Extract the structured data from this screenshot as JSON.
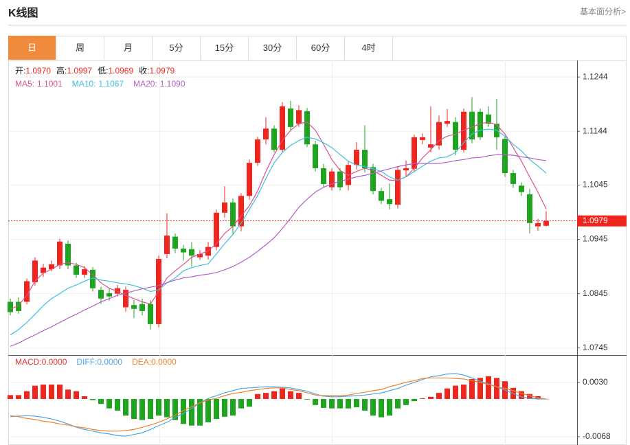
{
  "header": {
    "title": "K线图",
    "link": "基本面分析>"
  },
  "tabs": [
    "日",
    "周",
    "月",
    "5分",
    "15分",
    "30分",
    "60分",
    "4时"
  ],
  "active_tab": 0,
  "chart_data": [
    {
      "type": "candlestick",
      "up_color": "#f0261e",
      "down_color": "#1ea51e",
      "ylim": [
        1.0732,
        1.1272
      ],
      "yticks": [
        1.1244,
        1.1144,
        1.1045,
        1.0945,
        1.0845,
        1.0745
      ],
      "grid": true,
      "current_price": 1.0979,
      "current_price_color": "#f0261e",
      "info": [
        {
          "label": "开:",
          "value": "1.0970"
        },
        {
          "label": "高:",
          "value": "1.0997"
        },
        {
          "label": "低:",
          "value": "1.0969"
        },
        {
          "label": "收:",
          "value": "1.0979"
        }
      ],
      "open": [
        1.083,
        1.083,
        1.083,
        1.0866,
        1.0883,
        1.089,
        1.0897,
        1.0937,
        1.0897,
        1.088,
        1.0889,
        1.0852,
        1.0846,
        1.0845,
        1.082,
        1.0824,
        1.0826,
        1.0826,
        1.0789,
        1.0918,
        1.095,
        1.0928,
        1.0927,
        1.0912,
        1.0915,
        1.0931,
        1.0994,
        1.1013,
        1.0969,
        1.1025,
        1.1086,
        1.1129,
        1.1149,
        1.111,
        1.1186,
        1.1158,
        1.1181,
        1.112,
        1.1076,
        1.1041,
        1.107,
        1.1045,
        1.1082,
        1.111,
        1.1078,
        1.1034,
        1.1019,
        1.1009,
        1.1072,
        1.1075,
        1.1128,
        1.1114,
        1.1118,
        1.1158,
        1.1161,
        1.111,
        1.118,
        1.118,
        1.1175,
        1.1158,
        1.113,
        1.1067,
        1.1044,
        1.1028,
        1.0969,
        1.097
      ],
      "high": [
        1.0836,
        1.0838,
        1.0873,
        1.0912,
        1.09,
        1.0906,
        1.0946,
        1.0943,
        1.0902,
        1.0896,
        1.0894,
        1.0858,
        1.0855,
        1.0861,
        1.0858,
        1.0833,
        1.0836,
        1.0833,
        1.0915,
        1.0993,
        1.0956,
        1.0935,
        1.094,
        1.0925,
        1.094,
        1.1,
        1.1043,
        1.102,
        1.103,
        1.1092,
        1.1134,
        1.117,
        1.1155,
        1.1198,
        1.12,
        1.1192,
        1.1187,
        1.1127,
        1.1084,
        1.1076,
        1.1076,
        1.1088,
        1.1124,
        1.1155,
        1.1084,
        1.104,
        1.1048,
        1.108,
        1.109,
        1.1138,
        1.114,
        1.119,
        1.1173,
        1.1185,
        1.117,
        1.1186,
        1.1207,
        1.1186,
        1.119,
        1.1204,
        1.1136,
        1.1073,
        1.105,
        1.1038,
        1.0983,
        1.0997
      ],
      "low": [
        1.0805,
        1.0808,
        1.0825,
        1.086,
        1.0876,
        1.0886,
        1.089,
        1.089,
        1.0874,
        1.0874,
        1.0849,
        1.0826,
        1.0832,
        1.084,
        1.0812,
        1.08,
        1.0805,
        1.0779,
        1.0783,
        1.091,
        1.092,
        1.0906,
        1.0895,
        1.0907,
        1.0908,
        1.0925,
        1.0985,
        1.0953,
        1.096,
        1.1018,
        1.108,
        1.112,
        1.1105,
        1.1105,
        1.1146,
        1.1152,
        1.1115,
        1.107,
        1.1042,
        1.1035,
        1.1035,
        1.1035,
        1.1074,
        1.1068,
        1.1028,
        1.101,
        1.1,
        1.1002,
        1.106,
        1.107,
        1.112,
        1.1105,
        1.111,
        1.1152,
        1.11,
        1.1105,
        1.1122,
        1.1128,
        1.1152,
        1.111,
        1.106,
        1.104,
        1.1025,
        1.0956,
        1.0961,
        1.0969
      ],
      "close": [
        1.0811,
        1.0813,
        1.0868,
        1.0906,
        1.0893,
        1.0899,
        1.0941,
        1.0897,
        1.088,
        1.089,
        1.0855,
        1.0836,
        1.084,
        1.0855,
        1.0852,
        1.0817,
        1.0813,
        1.0789,
        1.0909,
        1.0952,
        1.0928,
        1.0921,
        1.0915,
        1.0918,
        1.0931,
        1.0994,
        1.1013,
        1.0969,
        1.1025,
        1.1086,
        1.1129,
        1.1149,
        1.111,
        1.119,
        1.1152,
        1.1183,
        1.112,
        1.1076,
        1.1047,
        1.107,
        1.1041,
        1.1082,
        1.111,
        1.1076,
        1.1034,
        1.1016,
        1.101,
        1.1073,
        1.1076,
        1.1133,
        1.1133,
        1.112,
        1.1161,
        1.1163,
        1.111,
        1.118,
        1.1129,
        1.1133,
        1.1158,
        1.1133,
        1.1067,
        1.1047,
        1.1032,
        1.0975,
        1.0975,
        1.0979
      ],
      "series": [
        {
          "name": "MA5:",
          "value_label": "1.1001",
          "color": "#e0508c",
          "values": [
            1.0817,
            1.0823,
            1.0842,
            1.0868,
            1.0883,
            1.089,
            1.0899,
            1.0902,
            1.0899,
            1.0893,
            1.088,
            1.0865,
            1.0855,
            1.0849,
            1.0842,
            1.0836,
            1.083,
            1.0826,
            1.0849,
            1.0874,
            1.0887,
            1.0899,
            1.0912,
            1.0918,
            1.0924,
            1.0937,
            1.0956,
            1.0969,
            1.0988,
            1.1007,
            1.1034,
            1.107,
            1.1101,
            1.1127,
            1.1146,
            1.1158,
            1.1161,
            1.1146,
            1.112,
            1.1092,
            1.1072,
            1.1063,
            1.107,
            1.1076,
            1.1072,
            1.1063,
            1.1054,
            1.1054,
            1.106,
            1.1076,
            1.1095,
            1.111,
            1.1127,
            1.1135,
            1.1139,
            1.1146,
            1.1152,
            1.1158,
            1.1161,
            1.1156,
            1.1139,
            1.1114,
            1.1089,
            1.106,
            1.1032,
            1.1001
          ]
        },
        {
          "name": "MA10:",
          "value_label": "1.1067",
          "color": "#3ec0de",
          "values": [
            1.0769,
            1.0779,
            1.0792,
            1.0807,
            1.0823,
            1.0836,
            1.0845,
            1.0855,
            1.0861,
            1.0868,
            1.0874,
            1.087,
            1.0868,
            1.0865,
            1.0863,
            1.086,
            1.0855,
            1.0849,
            1.0852,
            1.0865,
            1.0874,
            1.0887,
            1.0893,
            1.0897,
            1.09,
            1.0918,
            1.0937,
            1.0954,
            1.0975,
            1.1,
            1.1026,
            1.1057,
            1.1086,
            1.1105,
            1.1118,
            1.1127,
            1.1133,
            1.113,
            1.1123,
            1.1114,
            1.1101,
            1.1089,
            1.1082,
            1.1079,
            1.1075,
            1.107,
            1.106,
            1.1054,
            1.106,
            1.107,
            1.108,
            1.1089,
            1.1095,
            1.1097,
            1.1105,
            1.1123,
            1.1139,
            1.1146,
            1.1148,
            1.1146,
            1.1135,
            1.112,
            1.1108,
            1.1092,
            1.108,
            1.1067
          ]
        },
        {
          "name": "MA20:",
          "value_label": "1.1090",
          "color": "#b25ec8",
          "values": [
            1.0748,
            1.0754,
            1.0762,
            1.0769,
            1.0777,
            1.0784,
            1.0792,
            1.08,
            1.0807,
            1.0815,
            1.0822,
            1.083,
            1.0836,
            1.0842,
            1.0846,
            1.085,
            1.0854,
            1.0857,
            1.086,
            1.0865,
            1.087,
            1.0874,
            1.0876,
            1.0879,
            1.0881,
            1.0884,
            1.0889,
            1.0895,
            1.0903,
            1.0912,
            1.0923,
            1.0935,
            1.0948,
            1.0965,
            1.0984,
            1.1004,
            1.1019,
            1.1032,
            1.1041,
            1.1047,
            1.1052,
            1.1056,
            1.106,
            1.1063,
            1.1067,
            1.1071,
            1.1075,
            1.1079,
            1.1082,
            1.1085,
            1.1085,
            1.1085,
            1.1085,
            1.1087,
            1.109,
            1.1092,
            1.1095,
            1.1096,
            1.1099,
            1.1101,
            1.1101,
            1.11,
            1.1097,
            1.1095,
            1.1092,
            1.109
          ]
        }
      ]
    },
    {
      "type": "macd",
      "up_color": "#f0261e",
      "down_color": "#1ea51e",
      "ylim": [
        -0.0083,
        0.0078
      ],
      "yticks": [
        {
          "value": 0.003,
          "label": "0.0030"
        },
        {
          "value": -0.0068,
          "label": "-0.0068"
        }
      ],
      "grid": true,
      "series": [
        {
          "name": "MACD:",
          "value_label": "0.0000",
          "color": "#e8302a",
          "kind": "bar",
          "values": [
            0.0007,
            0.0007,
            0.0014,
            0.0024,
            0.0026,
            0.0026,
            0.0026,
            0.0017,
            0.0014,
            0.0005,
            -0.0002,
            -0.0009,
            -0.0017,
            -0.0021,
            -0.003,
            -0.0036,
            -0.0038,
            -0.0036,
            -0.003,
            -0.0033,
            -0.0038,
            -0.0045,
            -0.0048,
            -0.0048,
            -0.0042,
            -0.0036,
            -0.0032,
            -0.003,
            -0.0017,
            -0.0014,
            0.0009,
            0.0011,
            0.0014,
            0.0019,
            0.0014,
            0.0011,
            -0.0001,
            -0.0011,
            -0.0016,
            -0.0017,
            -0.0017,
            -0.0017,
            -0.0015,
            -0.0021,
            -0.003,
            -0.0033,
            -0.003,
            -0.0017,
            -0.0011,
            -0.0004,
            0.0001,
            0.0004,
            0.0011,
            0.0019,
            0.0024,
            0.0026,
            0.0036,
            0.0038,
            0.0041,
            0.0038,
            0.0032,
            0.002,
            0.0014,
            0.0009,
            0.0005,
            0.0
          ]
        },
        {
          "name": "DIFF:",
          "value_label": "0.0000",
          "color": "#4ea6e6",
          "kind": "line",
          "values": [
            -0.0032,
            -0.0031,
            -0.003,
            -0.0031,
            -0.0033,
            -0.0036,
            -0.004,
            -0.0045,
            -0.0051,
            -0.0055,
            -0.0058,
            -0.0061,
            -0.0063,
            -0.0066,
            -0.0067,
            -0.0064,
            -0.0061,
            -0.0055,
            -0.0048,
            -0.0042,
            -0.0033,
            -0.0026,
            -0.0017,
            -0.0007,
            0.0001,
            0.0006,
            0.0011,
            0.0015,
            0.0019,
            0.002,
            0.0021,
            0.0022,
            0.0022,
            0.0021,
            0.002,
            0.0017,
            0.0014,
            0.0009,
            0.0005,
            0.0004,
            0.0004,
            0.0005,
            0.0006,
            0.0007,
            0.0009,
            0.0011,
            0.0015,
            0.0019,
            0.0025,
            0.003,
            0.0035,
            0.004,
            0.0042,
            0.0045,
            0.0046,
            0.0043,
            0.0038,
            0.0032,
            0.0027,
            0.0022,
            0.0016,
            0.001,
            0.0004,
            0.0001,
            0.0,
            0.0
          ]
        },
        {
          "name": "DEA:",
          "value_label": "0.0000",
          "color": "#f0822a",
          "kind": "line",
          "values": [
            -0.003,
            -0.0032,
            -0.0035,
            -0.0037,
            -0.004,
            -0.0042,
            -0.0045,
            -0.0047,
            -0.005,
            -0.0052,
            -0.0055,
            -0.0057,
            -0.0058,
            -0.0058,
            -0.0057,
            -0.0055,
            -0.0051,
            -0.0047,
            -0.0042,
            -0.0036,
            -0.0029,
            -0.0021,
            -0.0014,
            -0.0007,
            -0.0002,
            0.0001,
            0.0006,
            0.001,
            0.0012,
            0.0015,
            0.0017,
            0.0019,
            0.002,
            0.002,
            0.0017,
            0.0015,
            0.0011,
            0.0007,
            0.0006,
            0.0006,
            0.0006,
            0.0007,
            0.001,
            0.0012,
            0.0015,
            0.0017,
            0.0022,
            0.0026,
            0.003,
            0.0033,
            0.0037,
            0.0038,
            0.0038,
            0.0038,
            0.0037,
            0.0036,
            0.0033,
            0.003,
            0.0026,
            0.0022,
            0.0019,
            0.0015,
            0.001,
            0.0006,
            0.0002,
            0.0
          ]
        }
      ]
    }
  ]
}
